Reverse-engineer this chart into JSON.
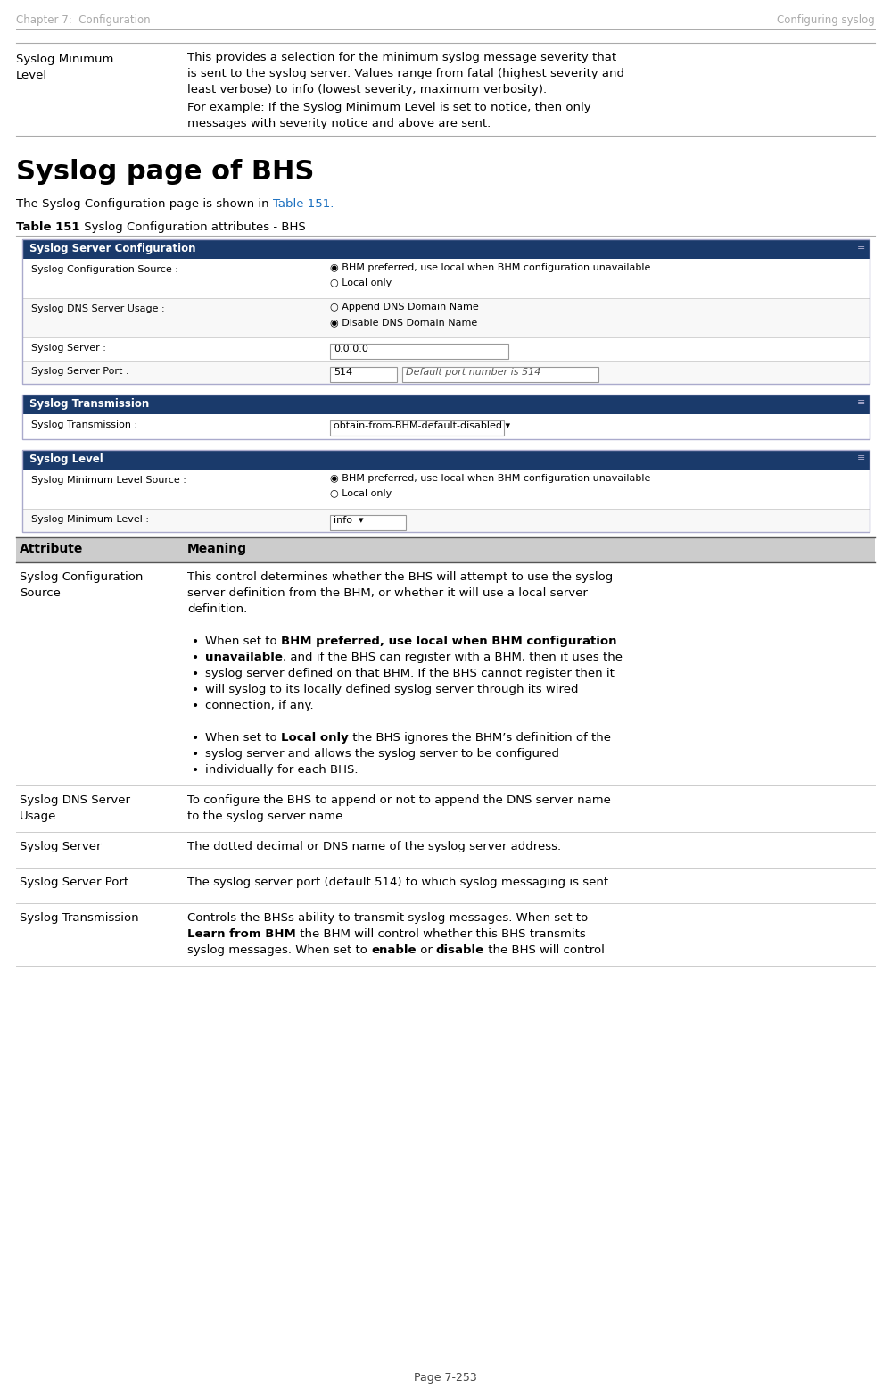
{
  "page_header_left": "Chapter 7:  Configuration",
  "page_header_right": "Configuring syslog",
  "page_footer": "Page 7-253",
  "bg_color": "#ffffff",
  "ui_header_bg": "#1a3a6b",
  "ui_header_text": "#ffffff",
  "ui_separator": "#cccccc",
  "table_header_bg": "#cccccc",
  "table_row_sep": "#cccccc",
  "section_title": "Syslog page of BHS",
  "intro_text_plain": "The Syslog Configuration page is shown in ",
  "intro_link": "Table 151.",
  "table_caption_bold": "Table 151",
  "table_caption_rest": " Syslog Configuration attributes - BHS"
}
